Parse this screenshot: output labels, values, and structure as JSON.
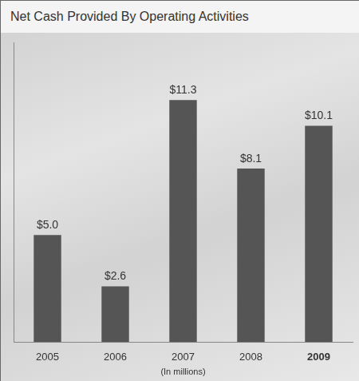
{
  "chart_data": {
    "type": "bar",
    "title": "Net Cash Provided By Operating Activities",
    "categories": [
      "2005",
      "2006",
      "2007",
      "2008",
      "2009"
    ],
    "values": [
      5.0,
      2.6,
      11.3,
      8.1,
      10.1
    ],
    "value_labels": [
      "$5.0",
      "$2.6",
      "$11.3",
      "$8.1",
      "$10.1"
    ],
    "x_label": "(In millions)",
    "color": "#555555",
    "ylim": [
      0,
      14
    ],
    "grid": false,
    "data_labels": true,
    "tick_labels": "x"
  }
}
